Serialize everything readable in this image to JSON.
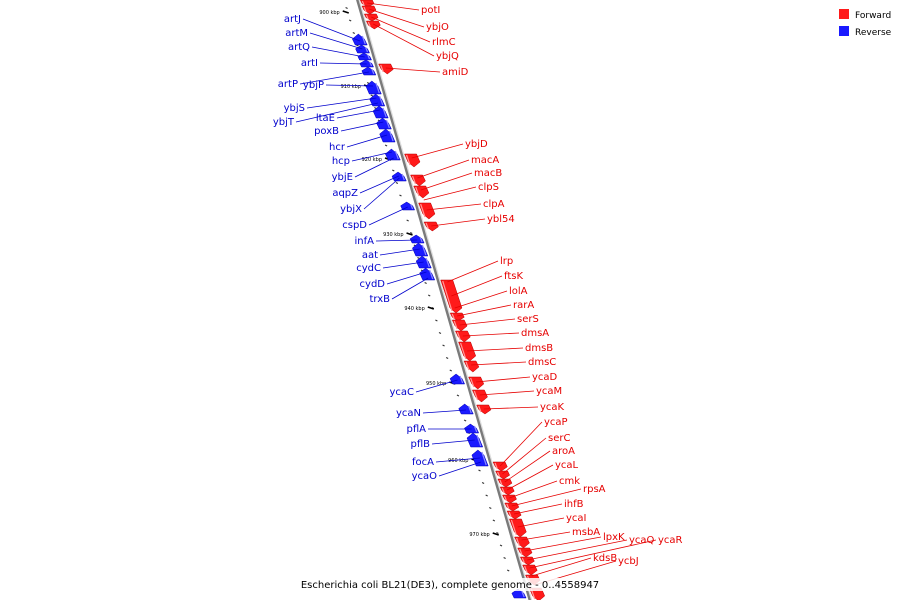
{
  "title": "Escherichia coli BL21(DE3), complete genome - 0..4558947",
  "legend": [
    {
      "label": "Forward",
      "color": "#ff1a1a"
    },
    {
      "label": "Reverse",
      "color": "#1a1aff"
    }
  ],
  "ticks": [
    "900 kbp",
    "910 kbp",
    "920 kbp",
    "930 kbp",
    "940 kbp",
    "950 kbp",
    "960 kbp",
    "970 kbp"
  ],
  "genes": [
    {
      "name": "potI",
      "strand": "forward"
    },
    {
      "name": "ybjO",
      "strand": "forward"
    },
    {
      "name": "rlmC",
      "strand": "forward"
    },
    {
      "name": "ybjQ",
      "strand": "forward"
    },
    {
      "name": "amiD",
      "strand": "forward"
    },
    {
      "name": "ybjD",
      "strand": "forward"
    },
    {
      "name": "macA",
      "strand": "forward"
    },
    {
      "name": "macB",
      "strand": "forward"
    },
    {
      "name": "clpS",
      "strand": "forward"
    },
    {
      "name": "clpA",
      "strand": "forward"
    },
    {
      "name": "ybl54",
      "strand": "forward"
    },
    {
      "name": "lrp",
      "strand": "forward"
    },
    {
      "name": "ftsK",
      "strand": "forward"
    },
    {
      "name": "lolA",
      "strand": "forward"
    },
    {
      "name": "rarA",
      "strand": "forward"
    },
    {
      "name": "serS",
      "strand": "forward"
    },
    {
      "name": "dmsA",
      "strand": "forward"
    },
    {
      "name": "dmsB",
      "strand": "forward"
    },
    {
      "name": "dmsC",
      "strand": "forward"
    },
    {
      "name": "ycaD",
      "strand": "forward"
    },
    {
      "name": "ycaM",
      "strand": "forward"
    },
    {
      "name": "ycaK",
      "strand": "forward"
    },
    {
      "name": "ycaP",
      "strand": "forward"
    },
    {
      "name": "serC",
      "strand": "forward"
    },
    {
      "name": "aroA",
      "strand": "forward"
    },
    {
      "name": "ycaL",
      "strand": "forward"
    },
    {
      "name": "cmk",
      "strand": "forward"
    },
    {
      "name": "rpsA",
      "strand": "forward"
    },
    {
      "name": "ihfB",
      "strand": "forward"
    },
    {
      "name": "ycaI",
      "strand": "forward"
    },
    {
      "name": "msbA",
      "strand": "forward"
    },
    {
      "name": "lpxK",
      "strand": "forward"
    },
    {
      "name": "ycaQ",
      "strand": "forward"
    },
    {
      "name": "ycaR",
      "strand": "forward"
    },
    {
      "name": "kdsB",
      "strand": "forward"
    },
    {
      "name": "ycbJ",
      "strand": "forward"
    },
    {
      "name": "artJ",
      "strand": "reverse"
    },
    {
      "name": "artM",
      "strand": "reverse"
    },
    {
      "name": "artQ",
      "strand": "reverse"
    },
    {
      "name": "artI",
      "strand": "reverse"
    },
    {
      "name": "artP",
      "strand": "reverse"
    },
    {
      "name": "ybjP",
      "strand": "reverse"
    },
    {
      "name": "ybjS",
      "strand": "reverse"
    },
    {
      "name": "ltaE",
      "strand": "reverse"
    },
    {
      "name": "ybjT",
      "strand": "reverse"
    },
    {
      "name": "poxB",
      "strand": "reverse"
    },
    {
      "name": "hcr",
      "strand": "reverse"
    },
    {
      "name": "hcp",
      "strand": "reverse"
    },
    {
      "name": "ybjE",
      "strand": "reverse"
    },
    {
      "name": "aqpZ",
      "strand": "reverse"
    },
    {
      "name": "ybjX",
      "strand": "reverse"
    },
    {
      "name": "cspD",
      "strand": "reverse"
    },
    {
      "name": "infA",
      "strand": "reverse"
    },
    {
      "name": "aat",
      "strand": "reverse"
    },
    {
      "name": "cydC",
      "strand": "reverse"
    },
    {
      "name": "cydD",
      "strand": "reverse"
    },
    {
      "name": "trxB",
      "strand": "reverse"
    },
    {
      "name": "ycaC",
      "strand": "reverse"
    },
    {
      "name": "ycaN",
      "strand": "reverse"
    },
    {
      "name": "pflA",
      "strand": "reverse"
    },
    {
      "name": "pflB",
      "strand": "reverse"
    },
    {
      "name": "focA",
      "strand": "reverse"
    },
    {
      "name": "ycaO",
      "strand": "reverse"
    }
  ]
}
